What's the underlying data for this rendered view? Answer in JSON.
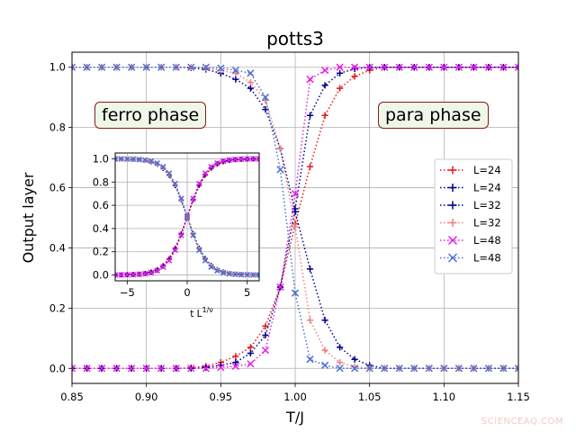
{
  "chart_data": [
    {
      "type": "line",
      "title": "potts3",
      "xlabel": "T/J",
      "ylabel": "Output layer",
      "xlim": [
        0.85,
        1.15
      ],
      "ylim": [
        -0.05,
        1.05
      ],
      "x_ticks": [
        "0.85",
        "0.90",
        "0.95",
        "1.00",
        "1.05",
        "1.10",
        "1.15"
      ],
      "y_ticks": [
        "0.0",
        "0.2",
        "0.4",
        "0.6",
        "0.8",
        "1.0"
      ],
      "grid": true,
      "legend_position": "right",
      "annotations": [
        "ferro phase",
        "para phase"
      ],
      "series": [
        {
          "name": "L=24",
          "color": "#e31a1c",
          "marker": "+",
          "kind": "rise",
          "x": [
            0.85,
            0.86,
            0.87,
            0.88,
            0.89,
            0.9,
            0.91,
            0.92,
            0.93,
            0.94,
            0.95,
            0.96,
            0.97,
            0.98,
            0.99,
            1.0,
            1.01,
            1.02,
            1.03,
            1.04,
            1.05,
            1.06,
            1.07,
            1.08,
            1.09,
            1.1,
            1.11,
            1.12,
            1.13,
            1.14,
            1.15
          ],
          "y": [
            0,
            0,
            0,
            0,
            0,
            0,
            0,
            0,
            0.002,
            0.007,
            0.02,
            0.04,
            0.07,
            0.14,
            0.27,
            0.48,
            0.67,
            0.84,
            0.93,
            0.97,
            0.99,
            1.0,
            1.0,
            1.0,
            1.0,
            1.0,
            1.0,
            1.0,
            1.0,
            1.0,
            1.0
          ]
        },
        {
          "name": "L=24",
          "color": "#00008b",
          "marker": "+",
          "kind": "fall",
          "x": [
            0.85,
            0.86,
            0.87,
            0.88,
            0.89,
            0.9,
            0.91,
            0.92,
            0.93,
            0.94,
            0.95,
            0.96,
            0.97,
            0.98,
            0.99,
            1.0,
            1.01,
            1.02,
            1.03,
            1.04,
            1.05,
            1.06,
            1.07,
            1.08,
            1.09,
            1.1,
            1.11,
            1.12,
            1.13,
            1.14,
            1.15
          ],
          "y": [
            1.0,
            1.0,
            1.0,
            1.0,
            1.0,
            1.0,
            1.0,
            1.0,
            0.998,
            0.993,
            0.98,
            0.96,
            0.93,
            0.86,
            0.73,
            0.52,
            0.33,
            0.16,
            0.07,
            0.03,
            0.01,
            0,
            0,
            0,
            0,
            0,
            0,
            0,
            0,
            0,
            0
          ]
        },
        {
          "name": "L=32",
          "color": "#00008b",
          "marker": "+",
          "kind": "rise",
          "x": [
            0.85,
            0.86,
            0.87,
            0.88,
            0.89,
            0.9,
            0.91,
            0.92,
            0.93,
            0.94,
            0.95,
            0.96,
            0.97,
            0.98,
            0.99,
            1.0,
            1.01,
            1.02,
            1.03,
            1.04,
            1.05,
            1.06,
            1.07,
            1.08,
            1.09,
            1.1,
            1.11,
            1.12,
            1.13,
            1.14,
            1.15
          ],
          "y": [
            0,
            0,
            0,
            0,
            0,
            0,
            0,
            0,
            0,
            0.003,
            0.01,
            0.02,
            0.05,
            0.11,
            0.27,
            0.53,
            0.84,
            0.94,
            0.98,
            0.995,
            1.0,
            1.0,
            1.0,
            1.0,
            1.0,
            1.0,
            1.0,
            1.0,
            1.0,
            1.0,
            1.0
          ]
        },
        {
          "name": "L=32",
          "color": "#f08080",
          "marker": "+",
          "kind": "fall",
          "x": [
            0.85,
            0.86,
            0.87,
            0.88,
            0.89,
            0.9,
            0.91,
            0.92,
            0.93,
            0.94,
            0.95,
            0.96,
            0.97,
            0.98,
            0.99,
            1.0,
            1.01,
            1.02,
            1.03,
            1.04,
            1.05,
            1.06,
            1.07,
            1.08,
            1.09,
            1.1,
            1.11,
            1.12,
            1.13,
            1.14,
            1.15
          ],
          "y": [
            1.0,
            1.0,
            1.0,
            1.0,
            1.0,
            1.0,
            1.0,
            1.0,
            1.0,
            0.997,
            0.99,
            0.98,
            0.95,
            0.89,
            0.73,
            0.47,
            0.16,
            0.06,
            0.02,
            0.005,
            0,
            0,
            0,
            0,
            0,
            0,
            0,
            0,
            0,
            0,
            0
          ]
        },
        {
          "name": "L=48",
          "color": "#e61ee6",
          "marker": "x",
          "kind": "rise",
          "x": [
            0.85,
            0.86,
            0.87,
            0.88,
            0.89,
            0.9,
            0.91,
            0.92,
            0.93,
            0.94,
            0.95,
            0.96,
            0.97,
            0.98,
            0.99,
            1.0,
            1.01,
            1.02,
            1.03,
            1.04,
            1.05,
            1.06,
            1.07,
            1.08,
            1.09,
            1.1,
            1.11,
            1.12,
            1.13,
            1.14,
            1.15
          ],
          "y": [
            0,
            0,
            0,
            0,
            0,
            0,
            0,
            0,
            0,
            0,
            0.003,
            0.007,
            0.015,
            0.06,
            0.27,
            0.58,
            0.96,
            0.99,
            1.0,
            1.0,
            1.0,
            1.0,
            1.0,
            1.0,
            1.0,
            1.0,
            1.0,
            1.0,
            1.0,
            1.0,
            1.0
          ]
        },
        {
          "name": "L=48",
          "color": "#4a6fd0",
          "marker": "x",
          "kind": "fall",
          "x": [
            0.85,
            0.86,
            0.87,
            0.88,
            0.89,
            0.9,
            0.91,
            0.92,
            0.93,
            0.94,
            0.95,
            0.96,
            0.97,
            0.98,
            0.99,
            1.0,
            1.01,
            1.02,
            1.03,
            1.04,
            1.05,
            1.06,
            1.07,
            1.08,
            1.09,
            1.1,
            1.11,
            1.12,
            1.13,
            1.14,
            1.15
          ],
          "y": [
            1.0,
            1.0,
            1.0,
            1.0,
            1.0,
            1.0,
            1.0,
            1.0,
            1.0,
            1.0,
            0.997,
            0.99,
            0.98,
            0.9,
            0.66,
            0.25,
            0.03,
            0.01,
            0,
            0,
            0,
            0,
            0,
            0,
            0,
            0,
            0,
            0,
            0,
            0,
            0
          ]
        }
      ]
    },
    {
      "type": "line",
      "title": "",
      "xlabel": "t L^{1/ν}",
      "ylabel": "",
      "xlim": [
        -6,
        6
      ],
      "ylim": [
        -0.05,
        1.05
      ],
      "x_ticks": [
        "−5",
        "0",
        "5"
      ],
      "y_ticks": [
        "0.0",
        "0.2",
        "0.4",
        "0.6",
        "0.8",
        "1.0"
      ],
      "grid": true,
      "series": [
        {
          "color": "#e31a1c",
          "marker": "+",
          "kind": "rise",
          "slope": 1.2
        },
        {
          "color": "#00008b",
          "marker": "+",
          "kind": "fall",
          "slope": 1.2
        },
        {
          "color": "#00008b",
          "marker": "+",
          "kind": "rise",
          "slope": 1.25
        },
        {
          "color": "#f08080",
          "marker": "+",
          "kind": "fall",
          "slope": 1.25
        },
        {
          "color": "#e61ee6",
          "marker": "x",
          "kind": "rise",
          "slope": 1.3
        },
        {
          "color": "#4a6fd0",
          "marker": "x",
          "kind": "fall",
          "slope": 1.3
        }
      ]
    }
  ],
  "labels": {
    "ferro": "ferro phase",
    "para": "para phase",
    "watermark": "SCIENCEAQ.COM"
  }
}
